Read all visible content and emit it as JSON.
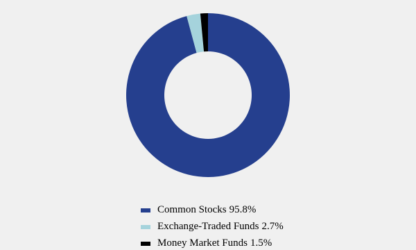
{
  "chart_data": {
    "type": "donut",
    "categories": [
      "Common Stocks",
      "Exchange-Traded Funds",
      "Money Market Funds"
    ],
    "values": [
      95.8,
      2.7,
      1.5
    ],
    "value_labels": [
      "95.8%",
      "2.7%",
      "1.5%"
    ],
    "colors": [
      "#253f8e",
      "#a5d3dc",
      "#000000"
    ]
  }
}
